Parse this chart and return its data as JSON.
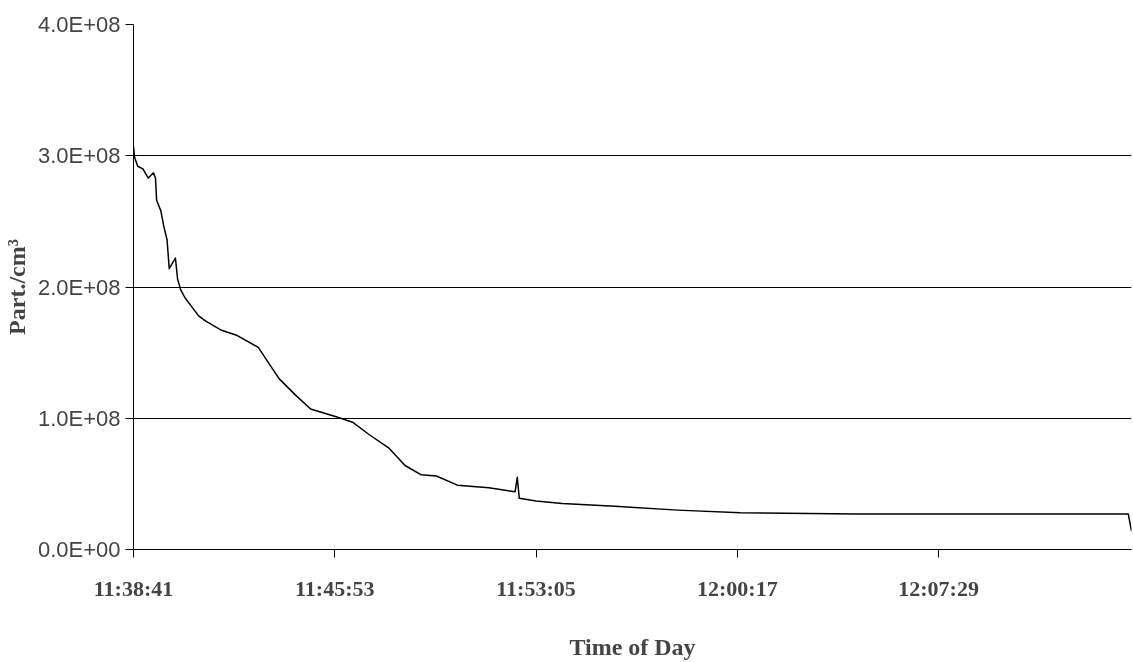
{
  "chart_data": {
    "type": "line",
    "xlabel": "Time of Day",
    "ylabel": "Part./cm³",
    "x": [
      11.6447,
      11.6453,
      11.6472,
      11.6503,
      11.6535,
      11.6566,
      11.6578,
      11.6585,
      11.661,
      11.6628,
      11.6647,
      11.666,
      11.6678,
      11.6697,
      11.671,
      11.6728,
      11.6753,
      11.6835,
      11.6878,
      11.6972,
      11.7066,
      11.7191,
      11.7253,
      11.7316,
      11.741,
      11.7503,
      11.766,
      11.7753,
      11.7847,
      11.7972,
      11.8066,
      11.816,
      11.8253,
      11.8378,
      11.8566,
      11.8722,
      11.8735,
      11.8747,
      11.8847,
      11.9003,
      11.9316,
      11.9691,
      12.0066,
      12.0753,
      12.1566,
      12.2378,
      12.2397
    ],
    "series": [
      {
        "color": "#000000",
        "values": [
          307000000,
          299000000,
          292000000,
          290000000,
          283000000,
          287000000,
          283000000,
          266000000,
          258000000,
          246000000,
          236000000,
          214000000,
          218000000,
          222000000,
          206000000,
          198000000,
          192000000,
          178000000,
          174000000,
          167000000,
          163000000,
          154000000,
          142000000,
          130000000,
          118000000,
          107000000,
          101000000,
          97000000,
          88000000,
          77000000,
          64000000,
          57000000,
          56000000,
          49000000,
          47000000,
          44000000,
          55000000,
          39000000,
          37000000,
          35000000,
          33000000,
          30000000,
          28000000,
          27000000,
          27000000,
          27000000,
          14000000
        ]
      }
    ],
    "xlim": [
      11.6447,
      12.2397
    ],
    "xticks": [
      {
        "value": 11.6447,
        "label": "11:38:41"
      },
      {
        "value": 11.7647,
        "label": "11:45:53"
      },
      {
        "value": 11.8847,
        "label": "11:53:05"
      },
      {
        "value": 12.0047,
        "label": "12:00:17"
      },
      {
        "value": 12.1247,
        "label": "12:07:29"
      }
    ],
    "ylim": [
      0,
      400000000
    ],
    "yticks": [
      {
        "value": 0,
        "label": "0.0E+00"
      },
      {
        "value": 100000000,
        "label": "1.0E+08"
      },
      {
        "value": 200000000,
        "label": "2.0E+08"
      },
      {
        "value": 300000000,
        "label": "3.0E+08"
      },
      {
        "value": 400000000,
        "label": "4.0E+08"
      }
    ],
    "grid": "y",
    "marker": "none",
    "line_style": "solid"
  }
}
